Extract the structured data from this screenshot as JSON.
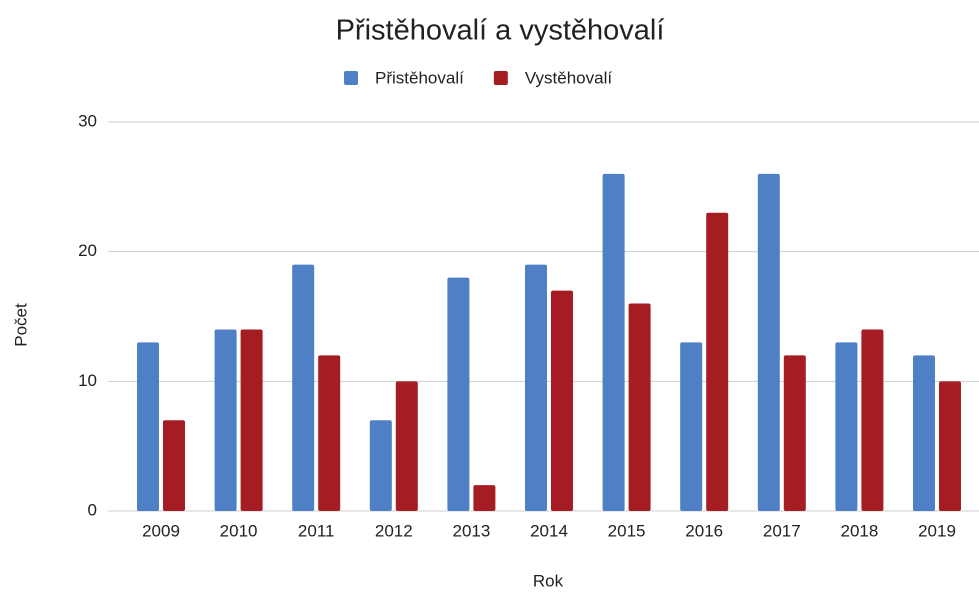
{
  "chart_data": {
    "type": "bar",
    "title": "Přistěhovalí a vystěhovalí",
    "x_label": "Rok",
    "y_label": "Počet",
    "categories": [
      "2009",
      "2010",
      "2011",
      "2012",
      "2013",
      "2014",
      "2015",
      "2016",
      "2017",
      "2018",
      "2019"
    ],
    "series": [
      {
        "name": "Přistěhovalí",
        "color": "#4f7fc5",
        "values": [
          13,
          14,
          19,
          7,
          18,
          19,
          26,
          13,
          26,
          13,
          12
        ]
      },
      {
        "name": "Vystěhovalí",
        "color": "#a51d23",
        "values": [
          7,
          14,
          12,
          10,
          2,
          17,
          16,
          23,
          12,
          14,
          10
        ]
      }
    ],
    "ylim": [
      0,
      30
    ],
    "yticks": [
      0,
      10,
      20,
      30
    ],
    "grid": true,
    "legend": "top"
  }
}
